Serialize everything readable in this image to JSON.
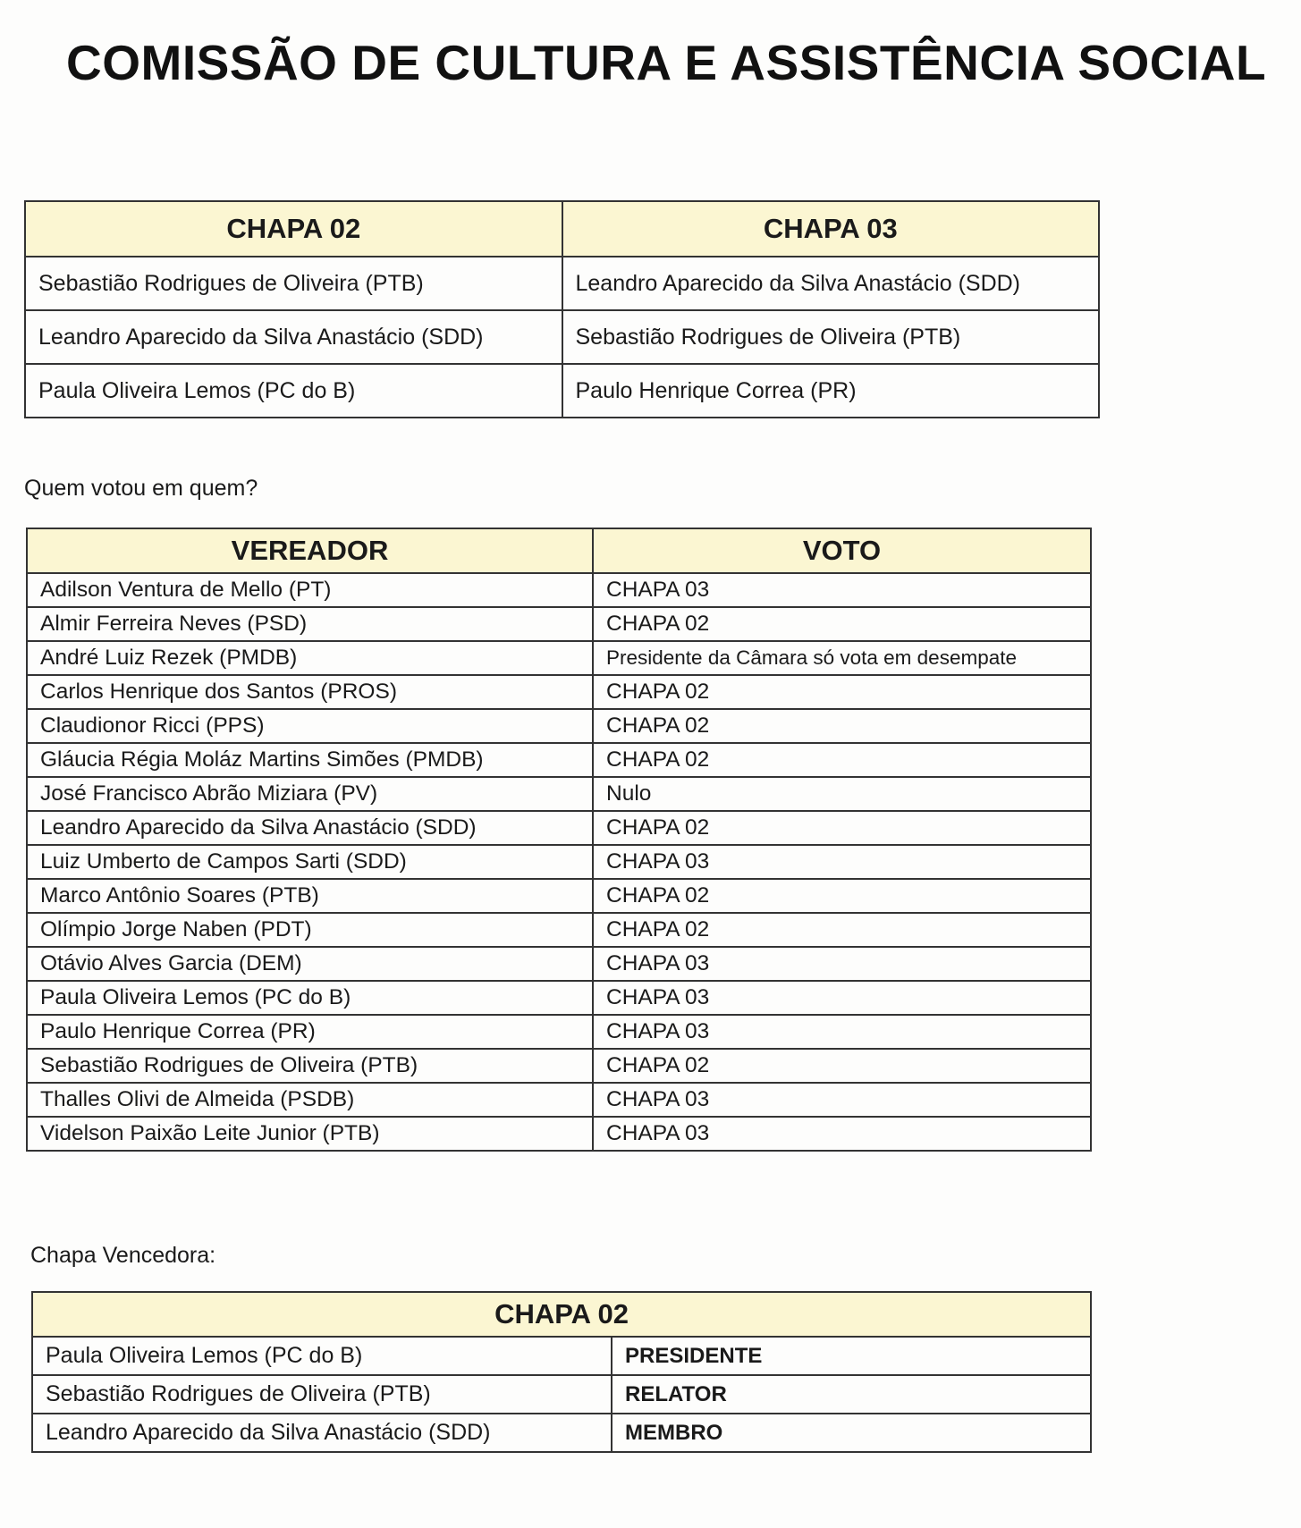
{
  "title": "COMISSÃO DE CULTURA E ASSISTÊNCIA SOCIAL",
  "header_color": "#fbf6d2",
  "chapas": {
    "headers": [
      "CHAPA 02",
      "CHAPA 03"
    ],
    "rows": [
      [
        "Sebastião Rodrigues de Oliveira (PTB)",
        "Leandro Aparecido da Silva Anastácio (SDD)"
      ],
      [
        "Leandro Aparecido da Silva Anastácio (SDD)",
        "Sebastião Rodrigues de Oliveira (PTB)"
      ],
      [
        "Paula Oliveira Lemos (PC do B)",
        "Paulo Henrique Correa (PR)"
      ]
    ]
  },
  "votes_label": "Quem votou em quem?",
  "votes": {
    "headers": [
      "VEREADOR",
      "VOTO"
    ],
    "rows": [
      [
        "Adilson Ventura de Mello (PT)",
        "CHAPA 03"
      ],
      [
        "Almir Ferreira Neves (PSD)",
        "CHAPA 02"
      ],
      [
        "André Luiz Rezek (PMDB)",
        "Presidente da Câmara só vota em desempate"
      ],
      [
        "Carlos Henrique dos Santos (PROS)",
        "CHAPA 02"
      ],
      [
        "Claudionor Ricci (PPS)",
        "CHAPA 02"
      ],
      [
        "Gláucia Régia Moláz Martins Simões (PMDB)",
        "CHAPA 02"
      ],
      [
        "José Francisco Abrão Miziara (PV)",
        "Nulo"
      ],
      [
        "Leandro Aparecido da Silva Anastácio (SDD)",
        "CHAPA 02"
      ],
      [
        "Luiz Umberto de Campos Sarti (SDD)",
        "CHAPA 03"
      ],
      [
        "Marco Antônio Soares (PTB)",
        "CHAPA 02"
      ],
      [
        "Olímpio Jorge Naben (PDT)",
        "CHAPA 02"
      ],
      [
        "Otávio Alves Garcia (DEM)",
        "CHAPA 03"
      ],
      [
        "Paula Oliveira Lemos (PC do B)",
        "CHAPA 03"
      ],
      [
        "Paulo Henrique Correa (PR)",
        "CHAPA 03"
      ],
      [
        "Sebastião Rodrigues de Oliveira (PTB)",
        "CHAPA 02"
      ],
      [
        "Thalles Olivi de Almeida (PSDB)",
        "CHAPA 03"
      ],
      [
        "Videlson Paixão Leite Junior (PTB)",
        "CHAPA 03"
      ]
    ]
  },
  "winner_label": "Chapa Vencedora:",
  "winner": {
    "header": "CHAPA 02",
    "rows": [
      [
        "Paula Oliveira Lemos (PC do B)",
        "PRESIDENTE"
      ],
      [
        "Sebastião Rodrigues de Oliveira (PTB)",
        "RELATOR"
      ],
      [
        "Leandro Aparecido da Silva Anastácio (SDD)",
        "MEMBRO"
      ]
    ]
  }
}
